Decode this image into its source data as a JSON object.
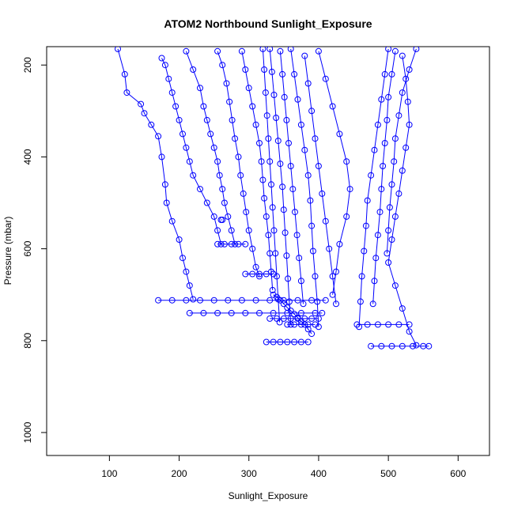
{
  "chart_data": {
    "type": "scatter",
    "title": "ATOM2 Northbound Sunlight_Exposure",
    "xlabel": "Sunlight_Exposure",
    "ylabel": "Pressure (mbar)",
    "xlim": [
      10,
      645
    ],
    "ylim": [
      1050,
      160
    ],
    "y_inverted": true,
    "x_ticks": [
      100,
      200,
      300,
      400,
      500,
      600
    ],
    "y_ticks": [
      200,
      400,
      600,
      800,
      1000
    ],
    "grid": false,
    "legend": "none",
    "series_color": "#0000ff",
    "marker": "open-circle",
    "connected": true,
    "series": [
      {
        "x": [
          112,
          122,
          125,
          145,
          150,
          160,
          170,
          175,
          180,
          182,
          190,
          200,
          205,
          210,
          215,
          220
        ],
        "y": [
          165,
          220,
          260,
          285,
          305,
          330,
          355,
          400,
          460,
          500,
          540,
          580,
          620,
          650,
          680,
          710
        ]
      },
      {
        "x": [
          175,
          180,
          185,
          190,
          195,
          200,
          205,
          210,
          215,
          220,
          230,
          240,
          250,
          255,
          260
        ],
        "y": [
          185,
          200,
          230,
          260,
          290,
          320,
          350,
          380,
          410,
          440,
          470,
          500,
          530,
          560,
          590
        ]
      },
      {
        "x": [
          210,
          220,
          230,
          235,
          240,
          245,
          250,
          255,
          258,
          262,
          265,
          270,
          275,
          280
        ],
        "y": [
          170,
          210,
          250,
          290,
          320,
          350,
          380,
          410,
          440,
          470,
          500,
          530,
          560,
          590
        ]
      },
      {
        "x": [
          255,
          262,
          268,
          272,
          276,
          280,
          285,
          288,
          292,
          296,
          300,
          305,
          310,
          315
        ],
        "y": [
          170,
          200,
          240,
          280,
          320,
          360,
          400,
          440,
          480,
          520,
          560,
          600,
          640,
          660
        ]
      },
      {
        "x": [
          290,
          295,
          300,
          305,
          310,
          315,
          318,
          320,
          322,
          325,
          328,
          330,
          332,
          334
        ],
        "y": [
          170,
          210,
          250,
          290,
          330,
          370,
          410,
          450,
          490,
          530,
          570,
          610,
          650,
          690
        ]
      },
      {
        "x": [
          320,
          322,
          324,
          326,
          328,
          330,
          332,
          334,
          336,
          338,
          340,
          342,
          344
        ],
        "y": [
          165,
          210,
          260,
          310,
          360,
          410,
          460,
          510,
          560,
          610,
          660,
          710,
          760
        ]
      },
      {
        "x": [
          330,
          333,
          336,
          339,
          342,
          345,
          348,
          350,
          352,
          354,
          356,
          358,
          360
        ],
        "y": [
          165,
          215,
          265,
          315,
          365,
          415,
          465,
          515,
          565,
          615,
          665,
          715,
          765
        ]
      },
      {
        "x": [
          345,
          348,
          351,
          354,
          357,
          360,
          363,
          366,
          369,
          372,
          375,
          378
        ],
        "y": [
          170,
          220,
          270,
          320,
          370,
          420,
          470,
          520,
          570,
          620,
          670,
          720
        ]
      },
      {
        "x": [
          360,
          365,
          370,
          375,
          380,
          385,
          388,
          390,
          392,
          395,
          398,
          400
        ],
        "y": [
          165,
          220,
          275,
          330,
          385,
          440,
          495,
          550,
          605,
          660,
          715,
          770
        ]
      },
      {
        "x": [
          380,
          385,
          390,
          395,
          400,
          405,
          410,
          415,
          420,
          425
        ],
        "y": [
          180,
          240,
          300,
          360,
          420,
          480,
          540,
          600,
          660,
          720
        ]
      },
      {
        "x": [
          400,
          410,
          420,
          430,
          440,
          445,
          440,
          430,
          425,
          420
        ],
        "y": [
          170,
          230,
          290,
          350,
          410,
          470,
          530,
          590,
          650,
          700
        ]
      },
      {
        "x": [
          500,
          495,
          490,
          485,
          480,
          475,
          470,
          468,
          465,
          462,
          460,
          458
        ],
        "y": [
          165,
          220,
          275,
          330,
          385,
          440,
          495,
          550,
          605,
          660,
          715,
          770
        ]
      },
      {
        "x": [
          510,
          505,
          500,
          498,
          495,
          492,
          490,
          488,
          485,
          482,
          480,
          478
        ],
        "y": [
          170,
          220,
          270,
          320,
          370,
          420,
          470,
          520,
          570,
          620,
          670,
          720
        ]
      },
      {
        "x": [
          520,
          525,
          528,
          530,
          525,
          520,
          515,
          510,
          505,
          500,
          510,
          520,
          530,
          540
        ],
        "y": [
          180,
          230,
          280,
          330,
          380,
          430,
          480,
          530,
          580,
          630,
          680,
          730,
          780,
          810
        ]
      },
      {
        "x": [
          540,
          530,
          520,
          515,
          510,
          508,
          505,
          502,
          500,
          498
        ],
        "y": [
          165,
          210,
          260,
          310,
          360,
          410,
          460,
          510,
          560,
          610
        ]
      },
      {
        "x": [
          170,
          190,
          210,
          230,
          250,
          270,
          290,
          310,
          330,
          350,
          370,
          390,
          410
        ],
        "y": [
          712,
          712,
          712,
          712,
          712,
          712,
          712,
          712,
          712,
          712,
          712,
          712,
          712
        ]
      },
      {
        "x": [
          215,
          235,
          255,
          275,
          295,
          315,
          335,
          355,
          375,
          395,
          405
        ],
        "y": [
          740,
          740,
          740,
          740,
          740,
          740,
          740,
          740,
          740,
          740,
          740
        ]
      },
      {
        "x": [
          255,
          265,
          275,
          285,
          295
        ],
        "y": [
          590,
          590,
          590,
          590,
          590
        ]
      },
      {
        "x": [
          295,
          305,
          315,
          325,
          335
        ],
        "y": [
          655,
          655,
          655,
          655,
          655
        ]
      },
      {
        "x": [
          330,
          340,
          350,
          360,
          370,
          380,
          390,
          400
        ],
        "y": [
          752,
          752,
          752,
          752,
          752,
          752,
          752,
          752
        ]
      },
      {
        "x": [
          355,
          365,
          375,
          385,
          395
        ],
        "y": [
          765,
          765,
          765,
          765,
          765
        ]
      },
      {
        "x": [
          455,
          470,
          485,
          500,
          515,
          530
        ],
        "y": [
          765,
          765,
          765,
          765,
          765,
          765
        ]
      },
      {
        "x": [
          475,
          490,
          505,
          520,
          535,
          550,
          558
        ],
        "y": [
          812,
          812,
          812,
          812,
          812,
          812,
          812
        ]
      },
      {
        "x": [
          325,
          335,
          345,
          355,
          365,
          375,
          385
        ],
        "y": [
          803,
          803,
          803,
          803,
          803,
          803,
          803
        ]
      },
      {
        "x": [
          260,
          262
        ],
        "y": [
          537,
          537
        ]
      },
      {
        "x": [
          335,
          340,
          345,
          350,
          355,
          360,
          365,
          370,
          375,
          380,
          385,
          390
        ],
        "y": [
          700,
          705,
          712,
          720,
          728,
          735,
          742,
          750,
          758,
          765,
          775,
          785
        ]
      }
    ]
  }
}
